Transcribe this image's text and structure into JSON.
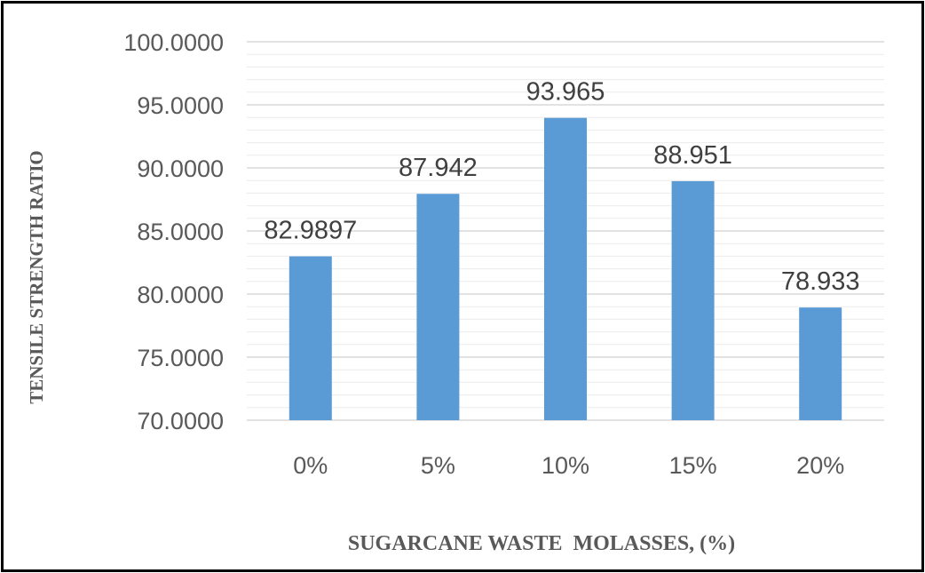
{
  "chart_data": {
    "type": "bar",
    "xlabel": "SUGARCANE WASTE  MOLASSES, (%)",
    "ylabel": "TENSILE STRENGTH RATIO",
    "categories": [
      "0%",
      "5%",
      "10%",
      "15%",
      "20%"
    ],
    "values": [
      82.9897,
      87.942,
      93.965,
      88.951,
      78.933
    ],
    "data_labels": [
      "82.9897",
      "87.942",
      "93.965",
      "88.951",
      "78.933"
    ],
    "ylim": [
      70,
      100
    ],
    "y_ticks": [
      "70.0000",
      "75.0000",
      "80.0000",
      "85.0000",
      "90.0000",
      "95.0000",
      "100.0000"
    ],
    "grid": true,
    "legend": "none",
    "bar_color": "#5B9BD5"
  }
}
